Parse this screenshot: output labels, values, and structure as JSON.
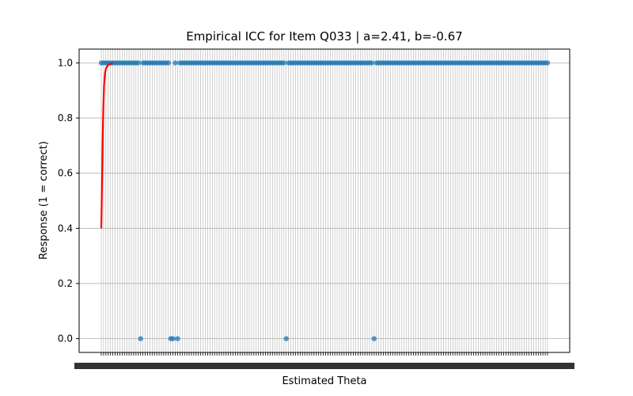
{
  "chart_data": {
    "type": "scatter",
    "title": "Empirical ICC for Item Q033 | a=2.41, b=-0.67",
    "xlabel": "Estimated Theta",
    "ylabel": "Response (1 = correct)",
    "ylim": [
      -0.05,
      1.05
    ],
    "yticks": [
      0.0,
      0.2,
      0.4,
      0.6,
      0.8,
      1.0
    ],
    "ytick_labels": [
      "0.0",
      "0.2",
      "0.4",
      "0.6",
      "0.8",
      "1.0"
    ],
    "grid": true,
    "x_axis": "categorical",
    "x_categories_count": 194,
    "x_tick_labels_note": "tick labels overlap and are illegible",
    "series": [
      {
        "kind": "scatter",
        "marker_color": "#1f77b4",
        "points_y": [
          1,
          1,
          1,
          1,
          1,
          1,
          1,
          1,
          1,
          1,
          1,
          1,
          1,
          1,
          1,
          1,
          1,
          0,
          1,
          1,
          1,
          1,
          1,
          1,
          1,
          1,
          1,
          1,
          1,
          1,
          0,
          0,
          1,
          0,
          1,
          1,
          1,
          1,
          1,
          1,
          1,
          1,
          1,
          1,
          1,
          1,
          1,
          1,
          1,
          1,
          1,
          1,
          1,
          1,
          1,
          1,
          1,
          1,
          1,
          1,
          1,
          1,
          1,
          1,
          1,
          1,
          1,
          1,
          1,
          1,
          1,
          1,
          1,
          1,
          1,
          1,
          1,
          1,
          1,
          1,
          0,
          1,
          1,
          1,
          1,
          1,
          1,
          1,
          1,
          1,
          1,
          1,
          1,
          1,
          1,
          1,
          1,
          1,
          1,
          1,
          1,
          1,
          1,
          1,
          1,
          1,
          1,
          1,
          1,
          1,
          1,
          1,
          1,
          1,
          1,
          1,
          1,
          1,
          0,
          1,
          1,
          1,
          1,
          1,
          1,
          1,
          1,
          1,
          1,
          1,
          1,
          1,
          1,
          1,
          1,
          1,
          1,
          1,
          1,
          1,
          1,
          1,
          1,
          1,
          1,
          1,
          1,
          1,
          1,
          1,
          1,
          1,
          1,
          1,
          1,
          1,
          1,
          1,
          1,
          1,
          1,
          1,
          1,
          1,
          1,
          1,
          1,
          1,
          1,
          1,
          1,
          1,
          1,
          1,
          1,
          1,
          1,
          1,
          1,
          1,
          1,
          1,
          1,
          1,
          1,
          1,
          1,
          1,
          1,
          1,
          1,
          1,
          1,
          1
        ]
      },
      {
        "kind": "line",
        "line_color": "#ff0000",
        "curve_points": [
          {
            "x_index": 0,
            "y": 0.4
          },
          {
            "x_index": 0.3,
            "y": 0.55
          },
          {
            "x_index": 0.6,
            "y": 0.72
          },
          {
            "x_index": 0.9,
            "y": 0.84
          },
          {
            "x_index": 1.2,
            "y": 0.92
          },
          {
            "x_index": 1.6,
            "y": 0.96
          },
          {
            "x_index": 2.0,
            "y": 0.98
          },
          {
            "x_index": 3.0,
            "y": 0.993
          },
          {
            "x_index": 5.0,
            "y": 0.999
          }
        ]
      }
    ]
  }
}
